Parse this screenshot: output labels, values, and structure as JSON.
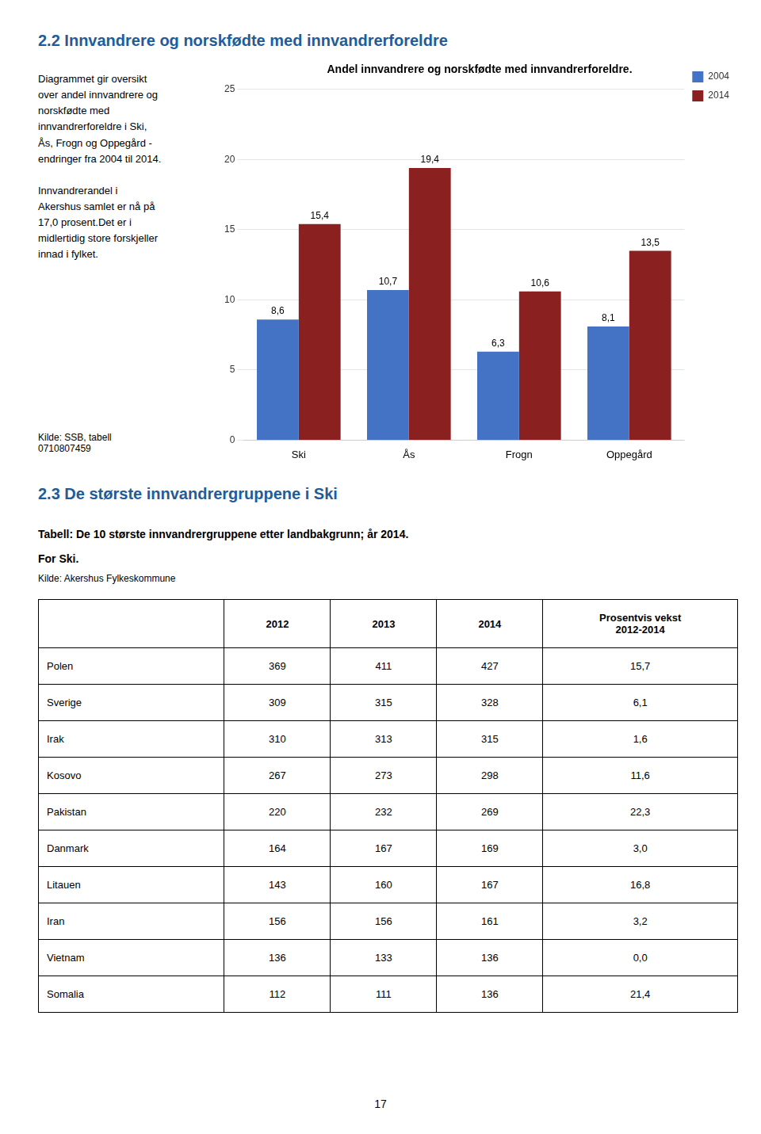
{
  "chart_data": {
    "type": "bar",
    "title": "Andel innvandrere og norskfødte med innvandrerforeldre.",
    "categories": [
      "Ski",
      "Ås",
      "Frogn",
      "Oppegård"
    ],
    "series": [
      {
        "name": "2004",
        "color": "#4472C4",
        "values": [
          8.6,
          10.7,
          6.3,
          8.1
        ],
        "value_labels": [
          "8,6",
          "10,7",
          "6,3",
          "8,1"
        ]
      },
      {
        "name": "2014",
        "color": "#8B2020",
        "values": [
          15.4,
          19.4,
          10.6,
          13.5
        ],
        "value_labels": [
          "15,4",
          "19,4",
          "10,6",
          "13,5"
        ]
      }
    ],
    "ylim": [
      0,
      25
    ],
    "yticks": [
      0,
      5,
      10,
      15,
      20,
      25
    ],
    "grid": true,
    "legend": "right",
    "data_labels": true
  },
  "page_title": "2.2 Innvandrere og norskfødte med innvandrerforeldre",
  "left_text": [
    [
      "Diagrammet gir oversikt",
      "over andel innvandrere og",
      "norskfødte med",
      "innvandrerforeldre i Ski,",
      "Ås, Frogn og Oppegård -",
      "endringer fra 2004 til 2014."
    ],
    [
      "Innvandrerandel i",
      "Akershus samlet er nå på",
      "17,0 prosent.Det er i",
      "midlertidig store forskjeller",
      "innad i fylket."
    ]
  ],
  "chart_source": [
    "Kilde: SSB, tabell",
    "0710807459"
  ],
  "section_title": "2.3 De største innvandrergruppene i Ski",
  "table": {
    "title": "Tabell: De 10 største innvandrergruppene etter landbakgrunn; år 2014.",
    "subtitle": "For Ski.",
    "source": "Kilde: Akershus Fylkeskommune",
    "columns": [
      [
        "2012"
      ],
      [
        "2013"
      ],
      [
        "2014"
      ],
      [
        "Prosentvis vekst",
        "2012-2014"
      ]
    ],
    "rows": [
      {
        "name": "Polen",
        "values": [
          369,
          411,
          427,
          15.7
        ],
        "value_labels": [
          "369",
          "411",
          "427",
          "15,7"
        ]
      },
      {
        "name": "Sverige",
        "values": [
          309,
          315,
          328,
          6.1
        ],
        "value_labels": [
          "309",
          "315",
          "328",
          "6,1"
        ]
      },
      {
        "name": "Irak",
        "values": [
          310,
          313,
          315,
          1.6
        ],
        "value_labels": [
          "310",
          "313",
          "315",
          "1,6"
        ]
      },
      {
        "name": "Kosovo",
        "values": [
          267,
          273,
          298,
          11.6
        ],
        "value_labels": [
          "267",
          "273",
          "298",
          "11,6"
        ]
      },
      {
        "name": "Pakistan",
        "values": [
          220,
          232,
          269,
          22.3
        ],
        "value_labels": [
          "220",
          "232",
          "269",
          "22,3"
        ]
      },
      {
        "name": "Danmark",
        "values": [
          164,
          167,
          169,
          3.0
        ],
        "value_labels": [
          "164",
          "167",
          "169",
          "3,0"
        ]
      },
      {
        "name": "Litauen",
        "values": [
          143,
          160,
          167,
          16.8
        ],
        "value_labels": [
          "143",
          "160",
          "167",
          "16,8"
        ]
      },
      {
        "name": "Iran",
        "values": [
          156,
          156,
          161,
          3.2
        ],
        "value_labels": [
          "156",
          "156",
          "161",
          "3,2"
        ]
      },
      {
        "name": "Vietnam",
        "values": [
          136,
          133,
          136,
          0.0
        ],
        "value_labels": [
          "136",
          "133",
          "136",
          "0,0"
        ]
      },
      {
        "name": "Somalia",
        "values": [
          112,
          111,
          136,
          21.4
        ],
        "value_labels": [
          "112",
          "111",
          "136",
          "21,4"
        ]
      }
    ]
  },
  "page_number": "17"
}
